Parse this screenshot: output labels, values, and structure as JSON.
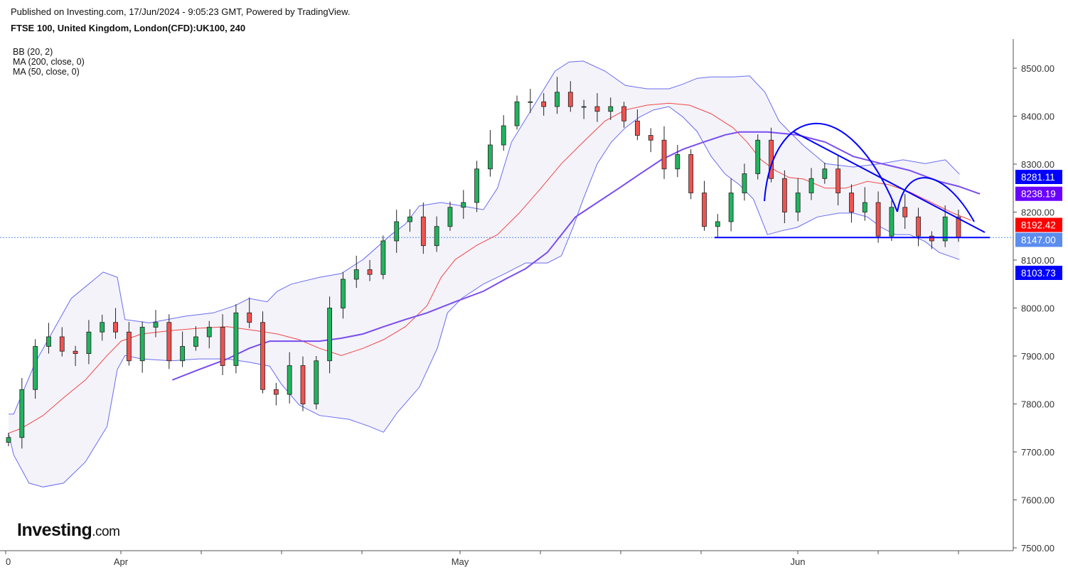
{
  "header": {
    "published": "Published on Investing.com, 17/Jun/2024 - 9:05:23 GMT, Powered by TradingView.",
    "title": "FTSE 100, United Kingdom, London(CFD):UK100, 240"
  },
  "indicators": [
    "BB (20, 2)",
    "MA (200, close, 0)",
    "MA (50, close, 0)"
  ],
  "logo": {
    "main": "Investing",
    "suffix": ".com"
  },
  "colors": {
    "up": "#22b35e",
    "down": "#ef5350",
    "band": "#6b6bf2",
    "band_fill": "#f3f3f9",
    "ma_red": "#f04848",
    "ma_purple": "#7a4df0",
    "drawing": "#0000ff"
  },
  "chart_data": {
    "type": "candlestick",
    "title": "FTSE 100, United Kingdom, London(CFD):UK100, 240",
    "ylim": [
      7500,
      8500
    ],
    "y_ticks": [
      "8500.00",
      "8400.00",
      "8300.00",
      "8200.00",
      "8100.00",
      "8000.00",
      "7900.00",
      "7800.00",
      "7700.00",
      "7600.00",
      "7500.00"
    ],
    "x_labels": [
      "0",
      "Apr",
      "May",
      "Jun"
    ],
    "closes": [
      7730,
      7830,
      7920,
      7940,
      7910,
      7905,
      7950,
      7970,
      7950,
      7890,
      7960,
      7970,
      7890,
      7920,
      7940,
      7960,
      7880,
      7990,
      7970,
      7830,
      7820,
      7880,
      7800,
      7890,
      8000,
      8060,
      8080,
      8070,
      8140,
      8180,
      8190,
      8130,
      8170,
      8210,
      8220,
      8290,
      8340,
      8380,
      8430,
      8430,
      8420,
      8450,
      8420,
      8420,
      8410,
      8420,
      8390,
      8360,
      8350,
      8290,
      8320,
      8240,
      8170,
      8180,
      8240,
      8280,
      8350,
      8270,
      8200,
      8240,
      8270,
      8290,
      8240,
      8200,
      8220,
      8150,
      8210,
      8190,
      8150,
      8140,
      8190,
      8147
    ],
    "bb_upper": [
      [
        0,
        7779
      ],
      [
        0.4,
        7779
      ],
      [
        2.1,
        7887
      ],
      [
        4.9,
        8020
      ],
      [
        7.4,
        8075
      ],
      [
        8.5,
        8064
      ],
      [
        9.1,
        7976
      ],
      [
        11,
        7969
      ],
      [
        13.8,
        7983
      ],
      [
        16,
        7990
      ],
      [
        17.7,
        8005
      ],
      [
        18.8,
        8020
      ],
      [
        20.2,
        8013
      ],
      [
        21,
        8035
      ],
      [
        22.1,
        8050
      ],
      [
        24.3,
        8064
      ],
      [
        26,
        8072
      ],
      [
        27.7,
        8101
      ],
      [
        29.9,
        8153
      ],
      [
        31,
        8175
      ],
      [
        32.1,
        8213
      ],
      [
        33.8,
        8220
      ],
      [
        35.4,
        8213
      ],
      [
        37.1,
        8205
      ],
      [
        38.2,
        8250
      ],
      [
        39.3,
        8346
      ],
      [
        41,
        8420
      ],
      [
        42.7,
        8494
      ],
      [
        43.8,
        8513
      ],
      [
        44.9,
        8515
      ],
      [
        46.6,
        8494
      ],
      [
        48.2,
        8464
      ],
      [
        49.9,
        8457
      ],
      [
        51.6,
        8457
      ],
      [
        52.7,
        8467
      ],
      [
        53.8,
        8479
      ],
      [
        54.9,
        8482
      ],
      [
        56.6,
        8482
      ],
      [
        57.9,
        8484
      ],
      [
        59.1,
        8450
      ],
      [
        60.2,
        8390
      ],
      [
        61,
        8368
      ],
      [
        62.1,
        8339
      ],
      [
        63.8,
        8301
      ],
      [
        66,
        8294
      ],
      [
        68.2,
        8301
      ],
      [
        69.9,
        8309
      ],
      [
        71.6,
        8301
      ],
      [
        73.2,
        8309
      ],
      [
        74.3,
        8279
      ]
    ],
    "bb_lower": [
      [
        0,
        7739
      ],
      [
        0.4,
        7694
      ],
      [
        1.6,
        7635
      ],
      [
        2.7,
        7627
      ],
      [
        4.3,
        7635
      ],
      [
        6,
        7679
      ],
      [
        7.7,
        7753
      ],
      [
        8.5,
        7872
      ],
      [
        9.1,
        7901
      ],
      [
        10.4,
        7894
      ],
      [
        12.7,
        7890
      ],
      [
        14.9,
        7894
      ],
      [
        17.1,
        7894
      ],
      [
        18.8,
        7887
      ],
      [
        20.4,
        7879
      ],
      [
        21.3,
        7842
      ],
      [
        22.7,
        7798
      ],
      [
        24.3,
        7776
      ],
      [
        26.6,
        7768
      ],
      [
        28.2,
        7753
      ],
      [
        29.3,
        7741
      ],
      [
        30.4,
        7783
      ],
      [
        32.1,
        7835
      ],
      [
        33.5,
        7916
      ],
      [
        34.3,
        7990
      ],
      [
        35.4,
        8020
      ],
      [
        37.1,
        8050
      ],
      [
        38.8,
        8072
      ],
      [
        40.4,
        8094
      ],
      [
        42.1,
        8094
      ],
      [
        43.2,
        8109
      ],
      [
        44.1,
        8168
      ],
      [
        44.9,
        8227
      ],
      [
        46,
        8301
      ],
      [
        47.1,
        8346
      ],
      [
        48.2,
        8376
      ],
      [
        49.3,
        8398
      ],
      [
        50.4,
        8413
      ],
      [
        51.6,
        8420
      ],
      [
        52.7,
        8398
      ],
      [
        53.8,
        8368
      ],
      [
        54.9,
        8316
      ],
      [
        56,
        8279
      ],
      [
        57.1,
        8257
      ],
      [
        58.2,
        8227
      ],
      [
        59.3,
        8153
      ],
      [
        60.4,
        8161
      ],
      [
        61.6,
        8168
      ],
      [
        63.2,
        8190
      ],
      [
        64.9,
        8198
      ],
      [
        66,
        8198
      ],
      [
        67.1,
        8190
      ],
      [
        68.2,
        8168
      ],
      [
        69.3,
        8153
      ],
      [
        70.4,
        8153
      ],
      [
        71.6,
        8139
      ],
      [
        72.7,
        8116
      ],
      [
        74.3,
        8101
      ]
    ],
    "ma_red": [
      [
        0,
        7739
      ],
      [
        1,
        7749
      ],
      [
        2.7,
        7776
      ],
      [
        4.3,
        7813
      ],
      [
        6,
        7850
      ],
      [
        7.7,
        7901
      ],
      [
        8.8,
        7931
      ],
      [
        10.4,
        7946
      ],
      [
        12.7,
        7953
      ],
      [
        14.9,
        7958
      ],
      [
        17.1,
        7961
      ],
      [
        19.3,
        7953
      ],
      [
        21,
        7946
      ],
      [
        22.7,
        7934
      ],
      [
        24.3,
        7916
      ],
      [
        26,
        7901
      ],
      [
        27.7,
        7916
      ],
      [
        29.3,
        7934
      ],
      [
        31,
        7961
      ],
      [
        32.7,
        8005
      ],
      [
        33.8,
        8064
      ],
      [
        34.9,
        8101
      ],
      [
        36.6,
        8131
      ],
      [
        38.2,
        8153
      ],
      [
        39.9,
        8198
      ],
      [
        41.6,
        8250
      ],
      [
        43.2,
        8301
      ],
      [
        44.9,
        8346
      ],
      [
        46.6,
        8390
      ],
      [
        48.2,
        8413
      ],
      [
        49.9,
        8423
      ],
      [
        51.6,
        8427
      ],
      [
        53.2,
        8423
      ],
      [
        54.9,
        8405
      ],
      [
        56.6,
        8376
      ],
      [
        57.7,
        8346
      ],
      [
        58.8,
        8309
      ],
      [
        59.9,
        8287
      ],
      [
        61,
        8272
      ],
      [
        62.1,
        8269
      ],
      [
        63.8,
        8250
      ],
      [
        65.4,
        8250
      ],
      [
        67.1,
        8264
      ],
      [
        68.8,
        8257
      ],
      [
        70.4,
        8242
      ],
      [
        72.1,
        8220
      ],
      [
        73.8,
        8198
      ],
      [
        75.2,
        8183
      ]
    ],
    "ma_purple": [
      [
        12.8,
        7850
      ],
      [
        14.9,
        7872
      ],
      [
        17.1,
        7894
      ],
      [
        18.8,
        7916
      ],
      [
        20.4,
        7931
      ],
      [
        22.7,
        7931
      ],
      [
        24.3,
        7931
      ],
      [
        26,
        7937
      ],
      [
        27.7,
        7946
      ],
      [
        29.3,
        7961
      ],
      [
        31,
        7976
      ],
      [
        32.7,
        7990
      ],
      [
        34.9,
        8013
      ],
      [
        37.1,
        8035
      ],
      [
        38.8,
        8060
      ],
      [
        40.4,
        8082
      ],
      [
        42.1,
        8116
      ],
      [
        43.2,
        8153
      ],
      [
        44.3,
        8190
      ],
      [
        46,
        8220
      ],
      [
        47.7,
        8250
      ],
      [
        49.3,
        8279
      ],
      [
        51,
        8309
      ],
      [
        52.7,
        8331
      ],
      [
        54.3,
        8346
      ],
      [
        56,
        8361
      ],
      [
        57.1,
        8367
      ],
      [
        59.3,
        8367
      ],
      [
        61.6,
        8361
      ],
      [
        63.8,
        8346
      ],
      [
        66,
        8316
      ],
      [
        68.2,
        8301
      ],
      [
        70.4,
        8287
      ],
      [
        72.7,
        8264
      ],
      [
        74.2,
        8254
      ],
      [
        75.9,
        8238
      ]
    ],
    "support_level": 8147,
    "price_labels": [
      {
        "value": "8281.11",
        "price": 8281.11,
        "color": "#0000ff"
      },
      {
        "value": "8238.19",
        "price": 8238.19,
        "color": "#6a00ff"
      },
      {
        "value": "8192.42",
        "price": 8192.42,
        "color": "#ff0000"
      },
      {
        "value": "8147.00",
        "price": 8147.0,
        "color": "#5b8def"
      },
      {
        "value": "8103.73",
        "price": 8103.73,
        "color": "#0000ff"
      }
    ]
  }
}
